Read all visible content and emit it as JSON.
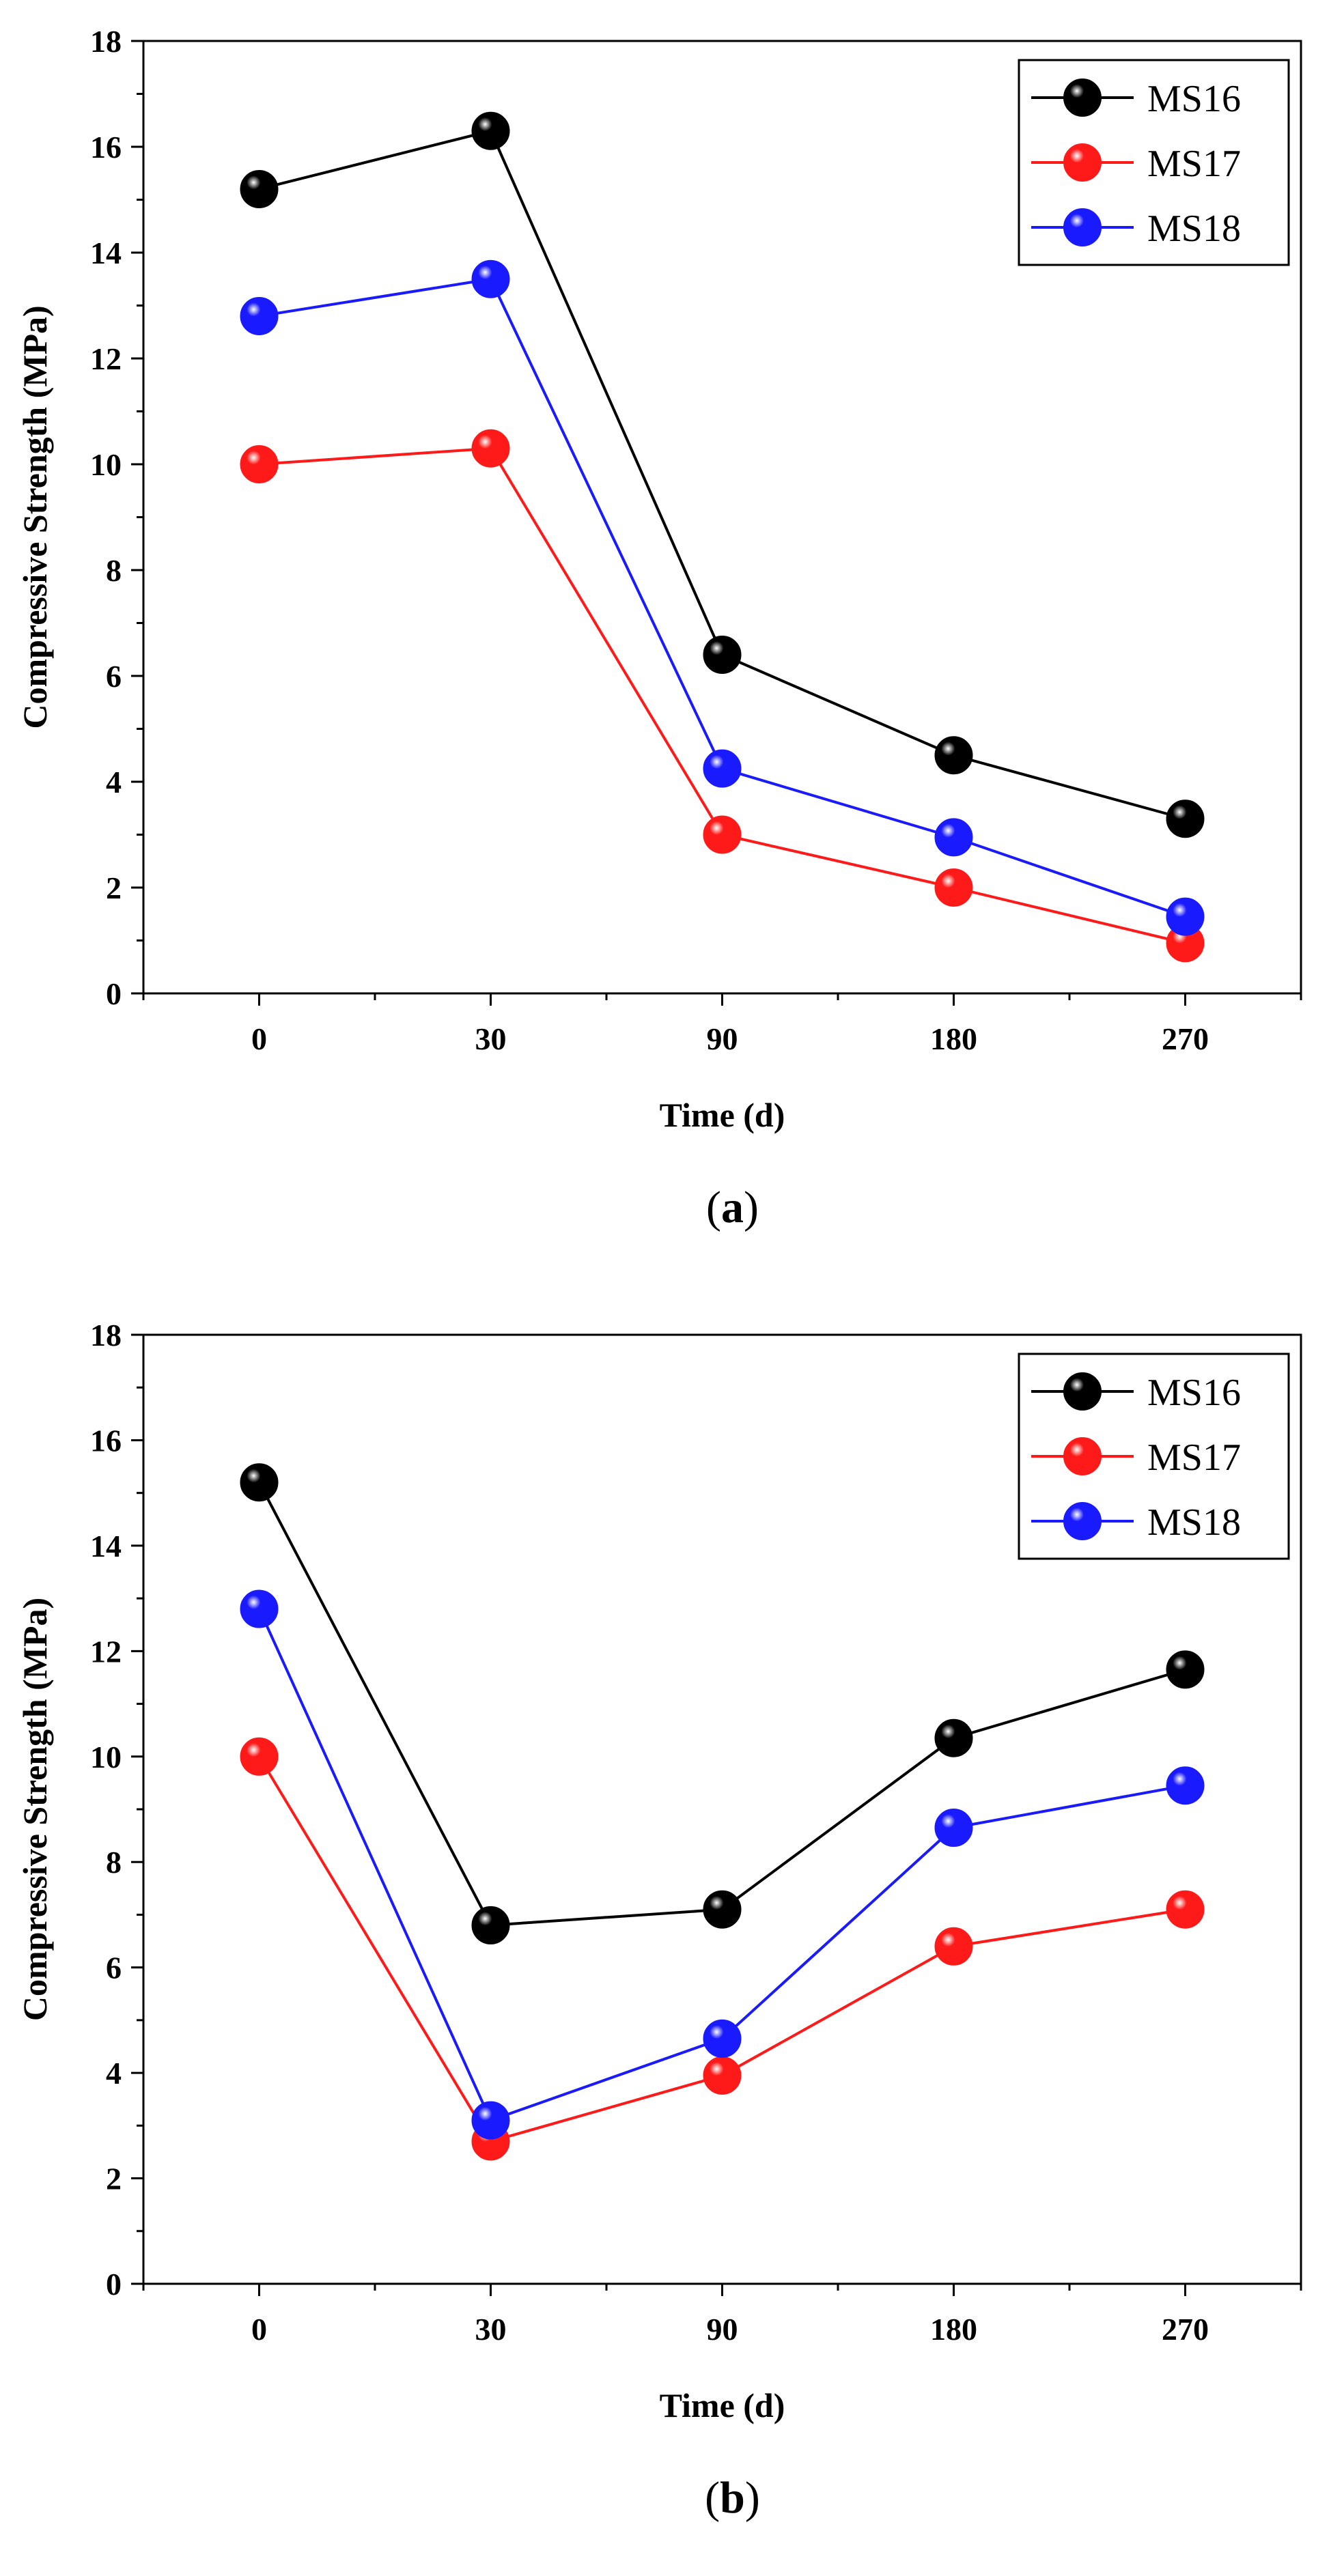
{
  "chart_data": [
    {
      "type": "line",
      "panel_label_open": "(",
      "panel_letter": "a",
      "panel_label_close": ")",
      "x": [
        "0",
        "30",
        "90",
        "180",
        "270"
      ],
      "xlabel": "Time (d)",
      "ylabel": "Compressive Strength (MPa)",
      "ylim": [
        0,
        18
      ],
      "yticks": [
        "0",
        "2",
        "4",
        "6",
        "8",
        "10",
        "12",
        "14",
        "16",
        "18"
      ],
      "grid": false,
      "legend_position": "top-right",
      "series": [
        {
          "name": "MS16",
          "color": "#000000",
          "values": [
            15.2,
            16.3,
            6.4,
            4.5,
            3.3
          ]
        },
        {
          "name": "MS17",
          "color": "#ff1a1a",
          "values": [
            10.0,
            10.3,
            3.0,
            2.0,
            0.95
          ]
        },
        {
          "name": "MS18",
          "color": "#1a1aff",
          "values": [
            12.8,
            13.5,
            4.25,
            2.95,
            1.45
          ]
        }
      ]
    },
    {
      "type": "line",
      "panel_label_open": "(",
      "panel_letter": "b",
      "panel_label_close": ")",
      "x": [
        "0",
        "30",
        "90",
        "180",
        "270"
      ],
      "xlabel": "Time (d)",
      "ylabel": "Compressive Strength (MPa)",
      "ylim": [
        0,
        18
      ],
      "yticks": [
        "0",
        "2",
        "4",
        "6",
        "8",
        "10",
        "12",
        "14",
        "16",
        "18"
      ],
      "grid": false,
      "legend_position": "top-right",
      "series": [
        {
          "name": "MS16",
          "color": "#000000",
          "values": [
            15.2,
            6.8,
            7.1,
            10.35,
            11.65
          ]
        },
        {
          "name": "MS17",
          "color": "#ff1a1a",
          "values": [
            10.0,
            2.7,
            3.95,
            6.4,
            7.1
          ]
        },
        {
          "name": "MS18",
          "color": "#1a1aff",
          "values": [
            12.8,
            3.1,
            4.65,
            8.65,
            9.45
          ]
        }
      ]
    }
  ]
}
